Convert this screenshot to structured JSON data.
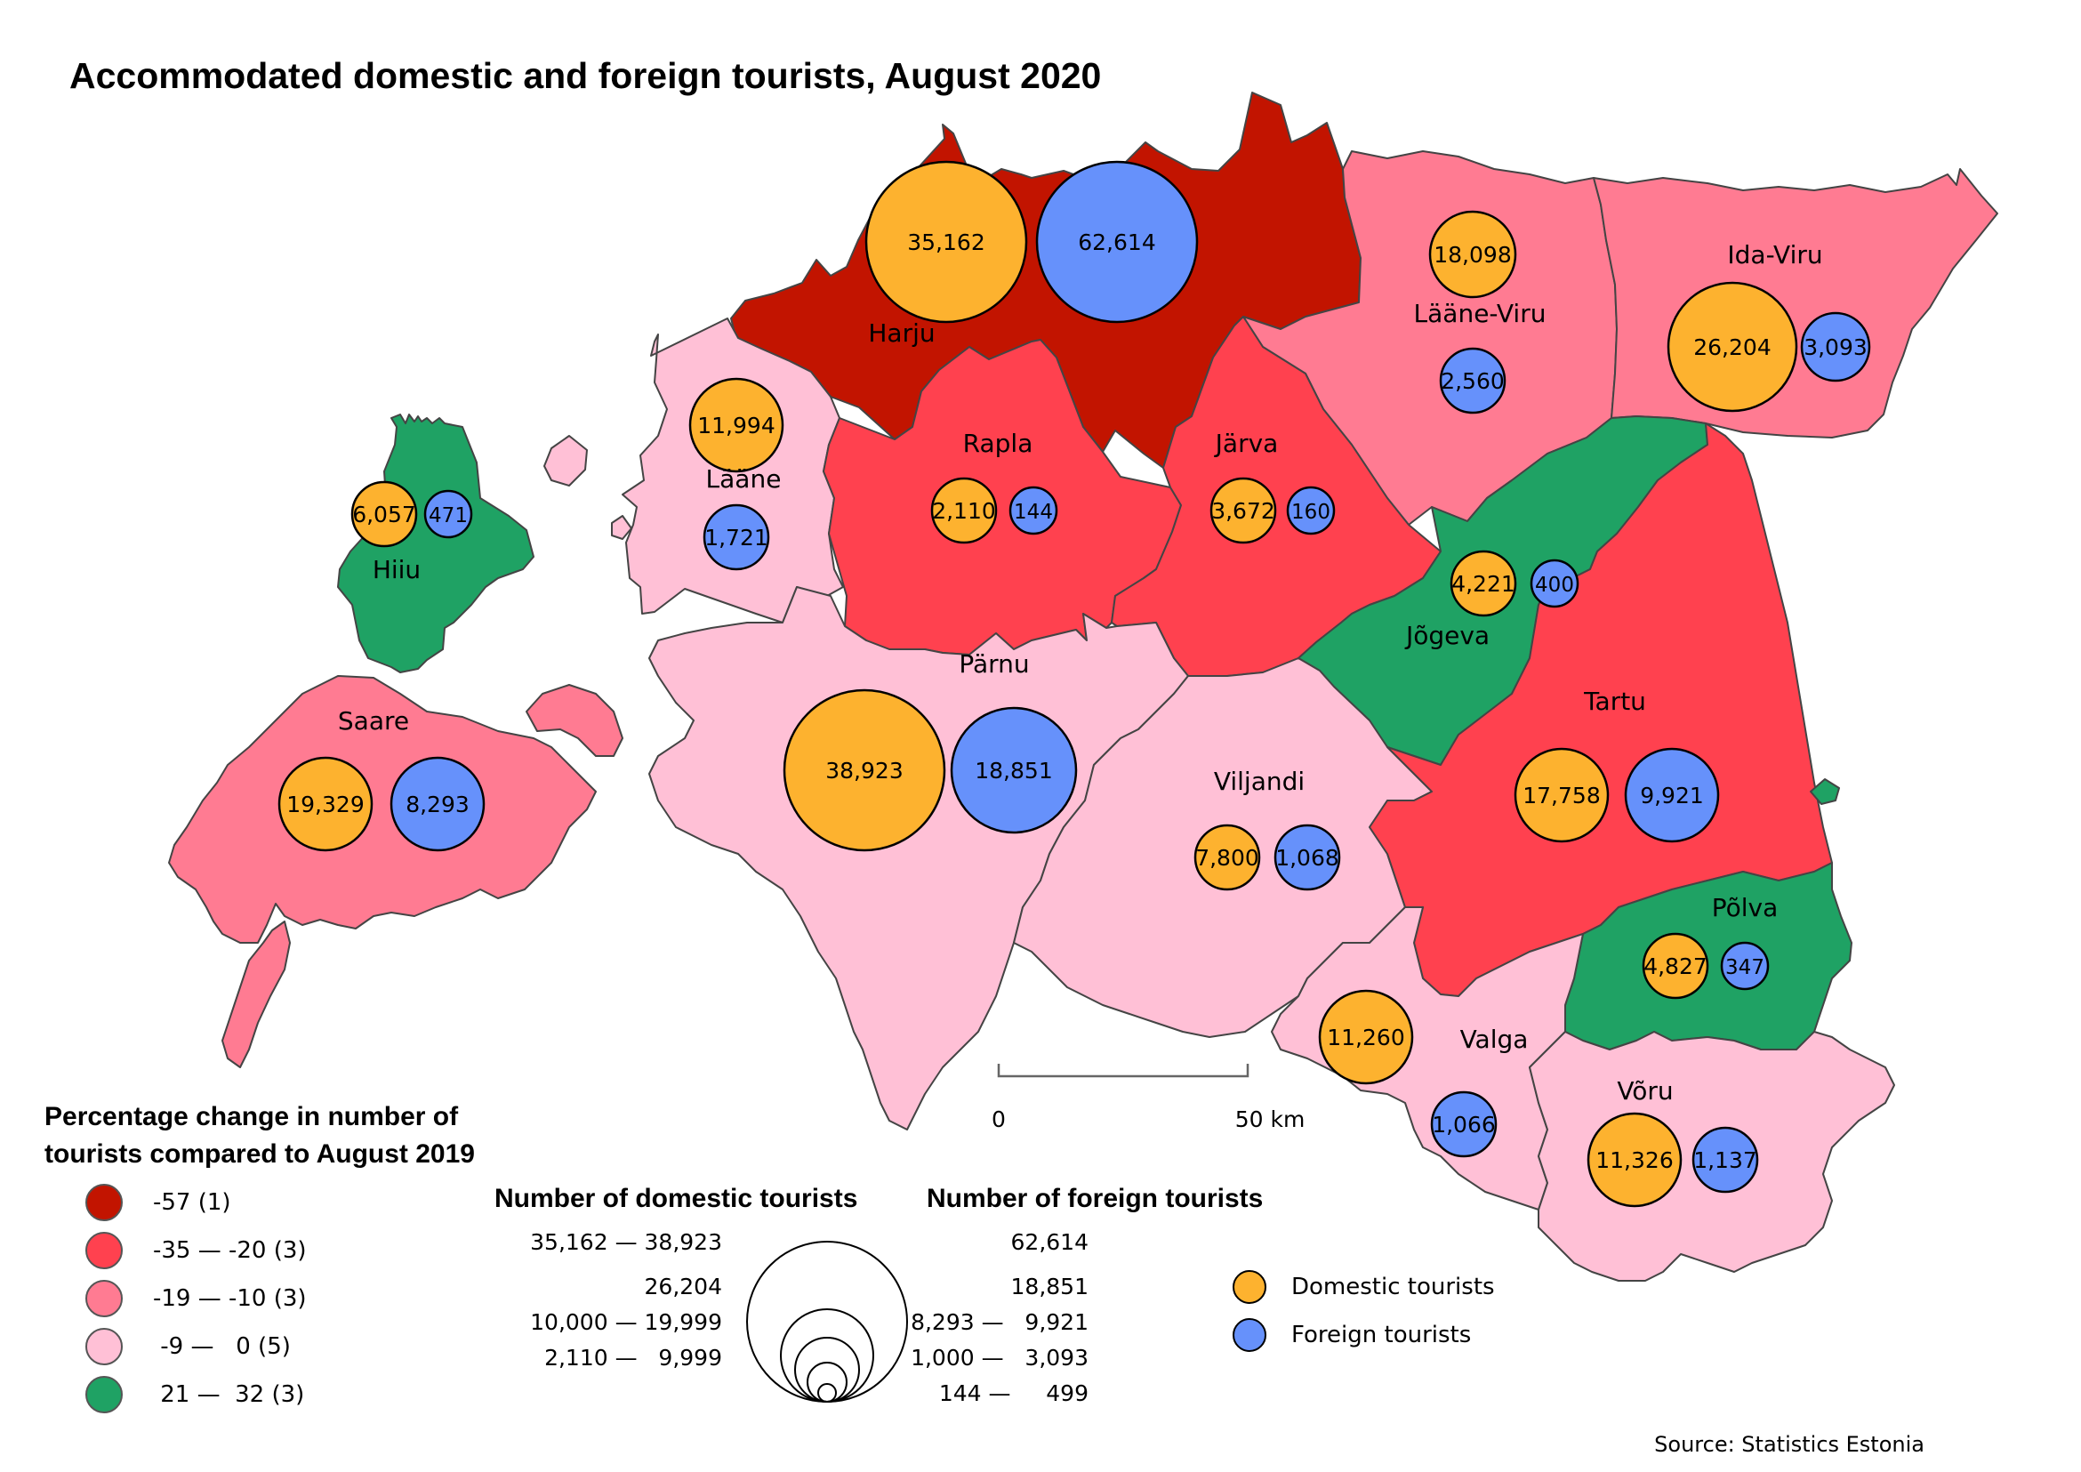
{
  "title": "Accommodated domestic and foreign tourists, August 2020",
  "source": "Source: Statistics Estonia",
  "colors": {
    "class_1": "#c21400",
    "class_2": "#ff414f",
    "class_3": "#ff7b92",
    "class_4": "#ffc0d6",
    "class_5": "#1fa264",
    "domestic": "#fdb22f",
    "foreign": "#6691fb"
  },
  "choropleth_legend": {
    "title_line1": "Percentage change in number of",
    "title_line2": "tourists compared to August 2019",
    "classes": [
      {
        "label": "-57 (1)",
        "color": "#c21400"
      },
      {
        "label": "-35 — -20 (3)",
        "color": "#ff414f"
      },
      {
        "label": "-19 — -10 (3)",
        "color": "#ff7b92"
      },
      {
        "label": " -9 —   0 (5)",
        "color": "#ffc0d6"
      },
      {
        "label": " 21 —  32 (3)",
        "color": "#1fa264"
      }
    ]
  },
  "size_legend": {
    "domestic_title": "Number of domestic tourists",
    "foreign_title": "Number of foreign tourists",
    "domestic_ranges": [
      "35,162 — 38,923",
      "26,204",
      "10,000 — 19,999",
      "2,110 —   9,999"
    ],
    "foreign_ranges": [
      "62,614",
      "18,851",
      "8,293 —   9,921",
      "1,000 —   3,093",
      "144 —     499"
    ]
  },
  "symbol_key": {
    "domestic": "Domestic tourists",
    "foreign": "Foreign tourists"
  },
  "scale_bar": {
    "zero": "0",
    "end": "50 km"
  },
  "counties": [
    {
      "name": "Harju",
      "change_class": 1,
      "domestic": 35162,
      "domestic_label": "35,162",
      "foreign": 62614,
      "foreign_label": "62,614"
    },
    {
      "name": "Lääne-Viru",
      "change_class": 3,
      "domestic": 18098,
      "domestic_label": "18,098",
      "foreign": 2560,
      "foreign_label": "2,560"
    },
    {
      "name": "Ida-Viru",
      "change_class": 3,
      "domestic": 26204,
      "domestic_label": "26,204",
      "foreign": 3093,
      "foreign_label": "3,093"
    },
    {
      "name": "Lääne",
      "change_class": 4,
      "domestic": 11994,
      "domestic_label": "11,994",
      "foreign": 1721,
      "foreign_label": "1,721"
    },
    {
      "name": "Rapla",
      "change_class": 2,
      "domestic": 2110,
      "domestic_label": "2,110",
      "foreign": 144,
      "foreign_label": "144"
    },
    {
      "name": "Järva",
      "change_class": 2,
      "domestic": 3672,
      "domestic_label": "3,672",
      "foreign": 160,
      "foreign_label": "160"
    },
    {
      "name": "Hiiu",
      "change_class": 5,
      "domestic": 6057,
      "domestic_label": "6,057",
      "foreign": 471,
      "foreign_label": "471"
    },
    {
      "name": "Jõgeva",
      "change_class": 5,
      "domestic": 4221,
      "domestic_label": "4,221",
      "foreign": 400,
      "foreign_label": "400"
    },
    {
      "name": "Saare",
      "change_class": 3,
      "domestic": 19329,
      "domestic_label": "19,329",
      "foreign": 8293,
      "foreign_label": "8,293"
    },
    {
      "name": "Pärnu",
      "change_class": 4,
      "domestic": 38923,
      "domestic_label": "38,923",
      "foreign": 18851,
      "foreign_label": "18,851"
    },
    {
      "name": "Viljandi",
      "change_class": 4,
      "domestic": 7800,
      "domestic_label": "7,800",
      "foreign": 1068,
      "foreign_label": "1,068"
    },
    {
      "name": "Tartu",
      "change_class": 2,
      "domestic": 17758,
      "domestic_label": "17,758",
      "foreign": 9921,
      "foreign_label": "9,921"
    },
    {
      "name": "Põlva",
      "change_class": 5,
      "domestic": 4827,
      "domestic_label": "4,827",
      "foreign": 347,
      "foreign_label": "347"
    },
    {
      "name": "Valga",
      "change_class": 4,
      "domestic": 11260,
      "domestic_label": "11,260",
      "foreign": 1066,
      "foreign_label": "1,066"
    },
    {
      "name": "Võru",
      "change_class": 4,
      "domestic": 11326,
      "domestic_label": "11,326",
      "foreign": 1137,
      "foreign_label": "1,137"
    }
  ]
}
